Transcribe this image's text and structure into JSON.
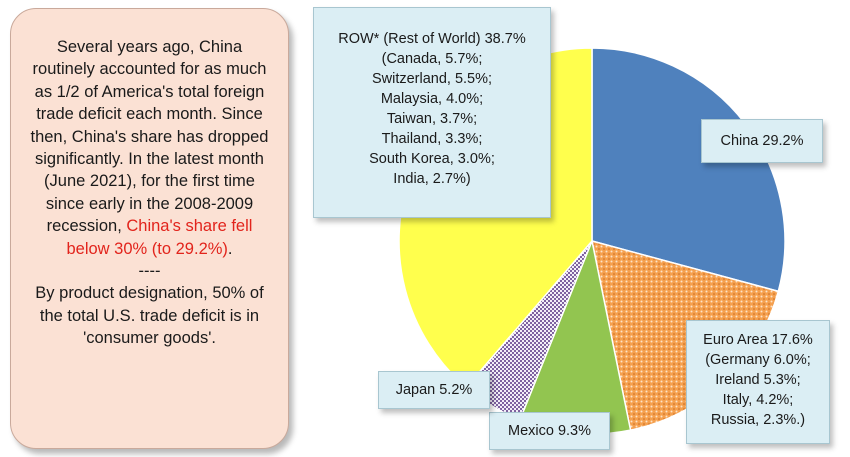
{
  "note": {
    "paragraph_1": "Several years ago, China routinely accounted for as much as 1/2 of America's total foreign trade deficit each month. Since then, China's share has dropped significantly. In the latest month (June 2021), for the first time since early in the 2008-2009 recession,",
    "highlight": "China's share fell below 30% (to 29.2%)",
    "highlight_end": ".",
    "separator": "----",
    "paragraph_2": "By product designation, 50% of the total U.S. trade deficit is in 'consumer goods'."
  },
  "chart_data": {
    "type": "pie",
    "title": "",
    "slices": [
      {
        "label": "China",
        "value": 29.2,
        "color": "#4f81bd",
        "pattern": "solid"
      },
      {
        "label": "Euro Area",
        "value": 17.6,
        "color": "#f2963c",
        "pattern": "dots"
      },
      {
        "label": "Mexico",
        "value": 9.3,
        "color": "#92c550",
        "pattern": "solid"
      },
      {
        "label": "Japan",
        "value": 5.2,
        "color": "#8064a2",
        "pattern": "checker"
      },
      {
        "label": "ROW* (Rest of World)",
        "value": 38.7,
        "color": "#ffff4d",
        "pattern": "solid"
      }
    ],
    "labels": {
      "row": [
        "ROW* (Rest of World) 38.7%",
        "(Canada, 5.7%;",
        "Switzerland, 5.5%;",
        "Malaysia, 4.0%;",
        "Taiwan, 3.7%;",
        "Thailand, 3.3%;",
        "South Korea, 3.0%;",
        "India, 2.7%)"
      ],
      "china": [
        "China 29.2%"
      ],
      "euro": [
        "Euro Area 17.6%",
        "(Germany 6.0%;",
        "Ireland 5.3%;",
        "Italy, 4.2%;",
        "Russia, 2.3%.)"
      ],
      "mexico": [
        "Mexico 9.3%"
      ],
      "japan": [
        "Japan 5.2%"
      ]
    }
  }
}
